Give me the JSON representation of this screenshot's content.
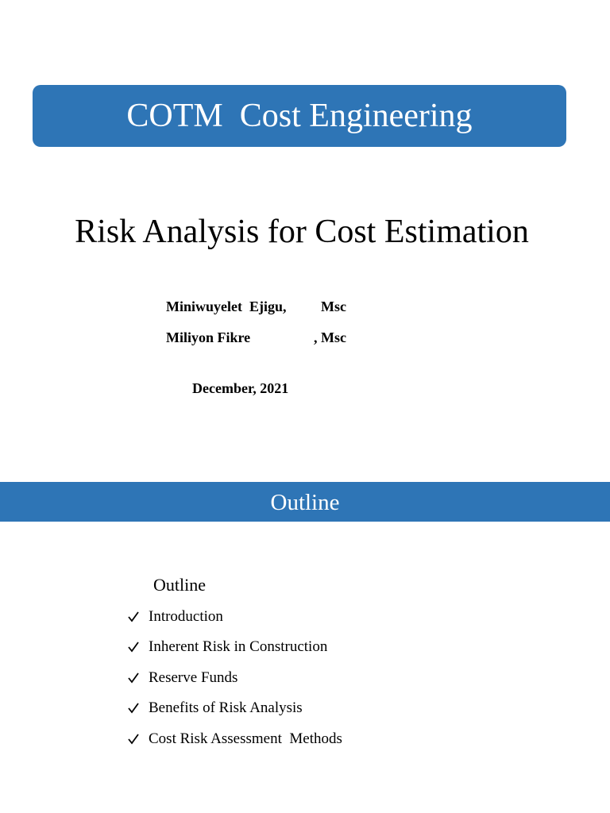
{
  "slide1": {
    "banner_title": "COTM  Cost Engineering",
    "title": "Risk Analysis for Cost Estimation",
    "authors": [
      {
        "name": "Miniwuyelet  Ejigu,",
        "degree": "Msc"
      },
      {
        "name": "Miliyon Fikre",
        "degree": ", Msc"
      }
    ],
    "date": "December, 2021"
  },
  "slide2": {
    "banner_title": "Outline",
    "heading": "Outline",
    "items": [
      "Introduction",
      "Inherent Risk in Construction",
      "Reserve Funds",
      "Benefits of Risk Analysis",
      "Cost Risk Assessment  Methods"
    ]
  }
}
